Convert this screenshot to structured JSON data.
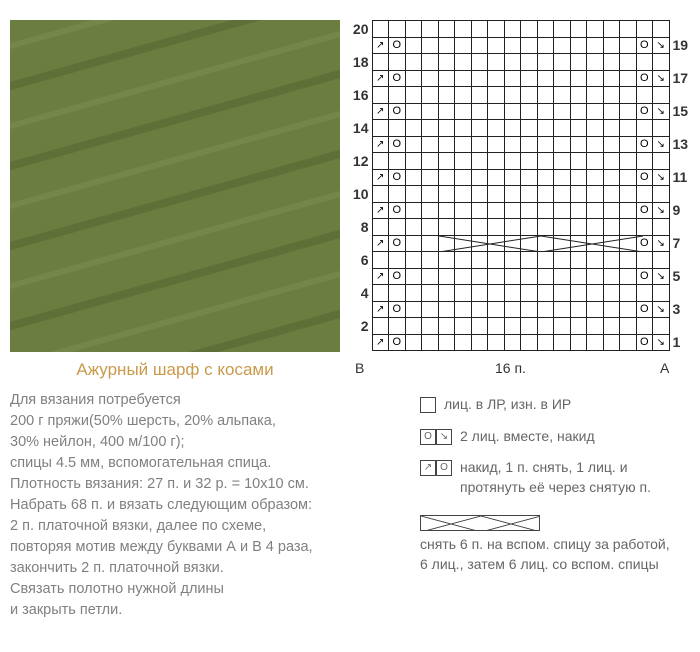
{
  "title": "Ажурный шарф с косами",
  "photo": {
    "dominant_color": "#6b7d3f",
    "description": "green cable-knit fabric swatch"
  },
  "instructions": {
    "lines": [
      "Для вязания потребуется",
      "200 г пряжи(50% шерсть, 20% альпака,",
      "30% нейлон, 400 м/100 г);",
      "спицы 4.5 мм, вспомогательная спица.",
      "Плотность вязания: 27 п. и 32 р. = 10x10 см.",
      "Набрать 68 п. и вязать следующим образом:",
      "2 п. платочной вязки, далее по схеме,",
      "повторяя мотив между буквами А и В 4 раза,",
      "закончить 2 п. платочной вязки.",
      "Связать полотно нужной длины",
      "и закрыть петли."
    ]
  },
  "chart": {
    "cols": 18,
    "rows": 20,
    "left_labels": {
      "r2": "20",
      "r4": "18",
      "r6": "16",
      "r8": "14",
      "r10": "12",
      "r12": "10",
      "r14": "8",
      "r16": "6",
      "r18": "4",
      "r20": "2"
    },
    "right_labels": {
      "r3": "19",
      "r5": "17",
      "r7": "15",
      "r9": "13",
      "r11": "11",
      "r13": "9",
      "r15": "7",
      "r17": "5",
      "r19": "3",
      "r21": "1"
    },
    "cable_row": 7,
    "axis_B": "B",
    "axis_mid": "16 п.",
    "axis_A": "A",
    "grid_color": "#222222",
    "pattern_note": "odd rows: cols 1-2 = b,o ; cols 15-16 = o,s ; row 7 cable across cols 3-14"
  },
  "legend": {
    "items": [
      {
        "symbol": "blank",
        "text": "лиц. в ЛР, изн. в ИР"
      },
      {
        "symbol": "os",
        "text": "2 лиц. вместе, накид"
      },
      {
        "symbol": "bo",
        "text": "накид, 1 п. снять, 1 лиц. и протянуть её через снятую п."
      },
      {
        "symbol": "cable",
        "text": "снять 6 п. на вспом. спицу за работой, 6 лиц., затем 6 лиц. со вспом. спицы"
      }
    ]
  },
  "colors": {
    "title": "#c99a4a",
    "body_text": "#808080",
    "legend_text": "#666666",
    "chart_border": "#222222"
  },
  "fontsizes": {
    "title": 17,
    "body": 14.5,
    "legend": 14,
    "row_labels": 14
  }
}
